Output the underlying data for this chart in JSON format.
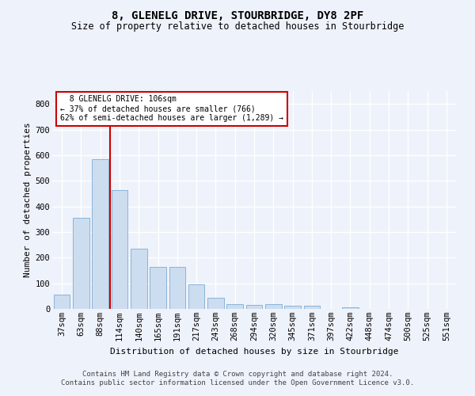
{
  "title": "8, GLENELG DRIVE, STOURBRIDGE, DY8 2PF",
  "subtitle": "Size of property relative to detached houses in Stourbridge",
  "xlabel": "Distribution of detached houses by size in Stourbridge",
  "ylabel": "Number of detached properties",
  "categories": [
    "37sqm",
    "63sqm",
    "88sqm",
    "114sqm",
    "140sqm",
    "165sqm",
    "191sqm",
    "217sqm",
    "243sqm",
    "268sqm",
    "294sqm",
    "320sqm",
    "345sqm",
    "371sqm",
    "397sqm",
    "422sqm",
    "448sqm",
    "474sqm",
    "500sqm",
    "525sqm",
    "551sqm"
  ],
  "values": [
    55,
    355,
    585,
    465,
    235,
    165,
    165,
    95,
    42,
    18,
    17,
    20,
    12,
    12,
    0,
    5,
    0,
    0,
    0,
    0,
    0
  ],
  "bar_color": "#ccddf0",
  "bar_edge_color": "#8ab4d8",
  "vline_x": 2.5,
  "vline_color": "#cc0000",
  "annotation_text": "  8 GLENELG DRIVE: 106sqm\n← 37% of detached houses are smaller (766)\n62% of semi-detached houses are larger (1,289) →",
  "annotation_box_color": "#ffffff",
  "annotation_box_edge": "#cc0000",
  "ylim": [
    0,
    850
  ],
  "yticks": [
    0,
    100,
    200,
    300,
    400,
    500,
    600,
    700,
    800
  ],
  "footer_line1": "Contains HM Land Registry data © Crown copyright and database right 2024.",
  "footer_line2": "Contains public sector information licensed under the Open Government Licence v3.0.",
  "background_color": "#eef2fa",
  "grid_color": "#ffffff",
  "title_fontsize": 10,
  "subtitle_fontsize": 8.5,
  "axis_label_fontsize": 8,
  "tick_fontsize": 7.5,
  "footer_fontsize": 6.5,
  "annot_fontsize": 7
}
